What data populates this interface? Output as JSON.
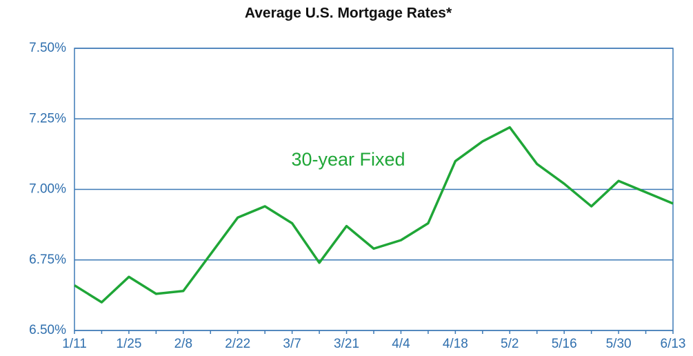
{
  "chart_data": {
    "type": "line",
    "title": "Average U.S. Mortgage Rates*",
    "categories": [
      "1/11",
      null,
      "1/25",
      null,
      "2/8",
      null,
      "2/22",
      null,
      "3/7",
      null,
      "3/21",
      null,
      "4/4",
      null,
      "4/18",
      null,
      "5/2",
      null,
      "5/16",
      null,
      "5/30",
      null,
      "6/13"
    ],
    "series": [
      {
        "name": "30-year Fixed",
        "color": "#1fa637",
        "values": [
          6.66,
          6.6,
          6.69,
          6.63,
          6.64,
          6.77,
          6.9,
          6.94,
          6.88,
          6.74,
          6.87,
          6.79,
          6.82,
          6.88,
          7.1,
          7.17,
          7.22,
          7.09,
          7.02,
          6.94,
          7.03,
          6.99,
          6.95
        ]
      }
    ],
    "ylim": [
      6.5,
      7.5
    ],
    "yticks": [
      {
        "value": 6.5,
        "label": "6.50%"
      },
      {
        "value": 6.75,
        "label": "6.75%"
      },
      {
        "value": 7.0,
        "label": "7.00%"
      },
      {
        "value": 7.25,
        "label": "7.25%"
      },
      {
        "value": 7.5,
        "label": "7.50%"
      }
    ],
    "grid": true
  }
}
